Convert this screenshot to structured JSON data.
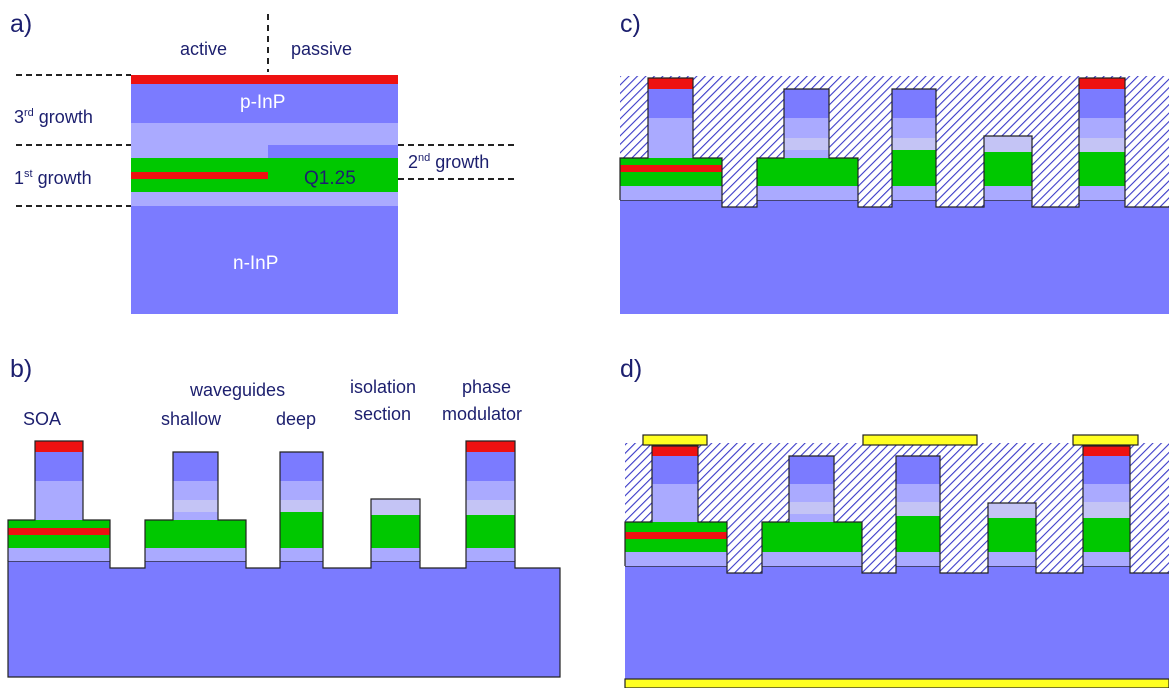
{
  "panels": {
    "a": "a)",
    "b": "b)",
    "c": "c)",
    "d": "d)"
  },
  "panel_a": {
    "active": "active",
    "passive": "passive",
    "growth3_num": "3",
    "growth3_sup": "rd",
    "growth3_word": " growth",
    "growth1_num": "1",
    "growth1_sup": "st",
    "growth1_word": " growth",
    "growth2_num": "2",
    "growth2_sup": "nd",
    "growth2_word": " growth",
    "p_inp": "p-InP",
    "q125": "Q1.25",
    "n_inp": "n-InP"
  },
  "panel_b": {
    "soa": "SOA",
    "waveguides": "waveguides",
    "shallow": "shallow",
    "deep": "deep",
    "isolation": "isolation",
    "section": "section",
    "phase": "phase",
    "modulator": "modulator"
  },
  "colors": {
    "substrate": "#7b7bff",
    "light_layer": "#aaaaff",
    "lighter_layer": "#c4c4f5",
    "waveguide_core": "#00c800",
    "active_layer": "#ee1111",
    "contact": "#ee1111",
    "metal": "#ffff22",
    "text": "#1c1f6e",
    "planarization_hatch": "#3a3ac8"
  }
}
